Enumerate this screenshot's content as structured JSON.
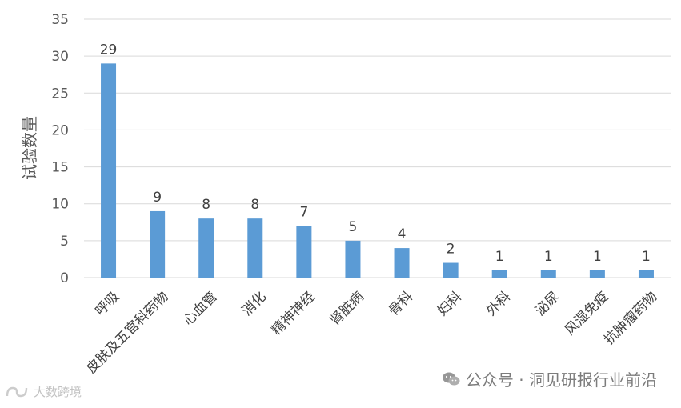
{
  "chart_data": {
    "type": "bar",
    "title": "",
    "xlabel": "",
    "ylabel": "试验数量",
    "ylim": [
      0,
      35
    ],
    "yticks": [
      0,
      5,
      10,
      15,
      20,
      25,
      30,
      35
    ],
    "grid": true,
    "bar_color": "#5B9BD5",
    "categories": [
      "呼吸",
      "皮肤及五官科药物",
      "心血管",
      "消化",
      "精神神经",
      "肾脏病",
      "骨科",
      "妇科",
      "外科",
      "泌尿",
      "风湿免疫",
      "抗肿瘤药物"
    ],
    "values": [
      29,
      9,
      8,
      8,
      7,
      5,
      4,
      2,
      1,
      1,
      1,
      1
    ],
    "data_labels": [
      "29",
      "9",
      "8",
      "8",
      "7",
      "5",
      "4",
      "2",
      "1",
      "1",
      "1",
      "1"
    ]
  },
  "watermark": {
    "right_text": "公众号 · 洞见研报行业前沿",
    "right_icon": "wechat-icon",
    "left_text": "大数跨境",
    "left_icon": "brand-logo-icon"
  }
}
